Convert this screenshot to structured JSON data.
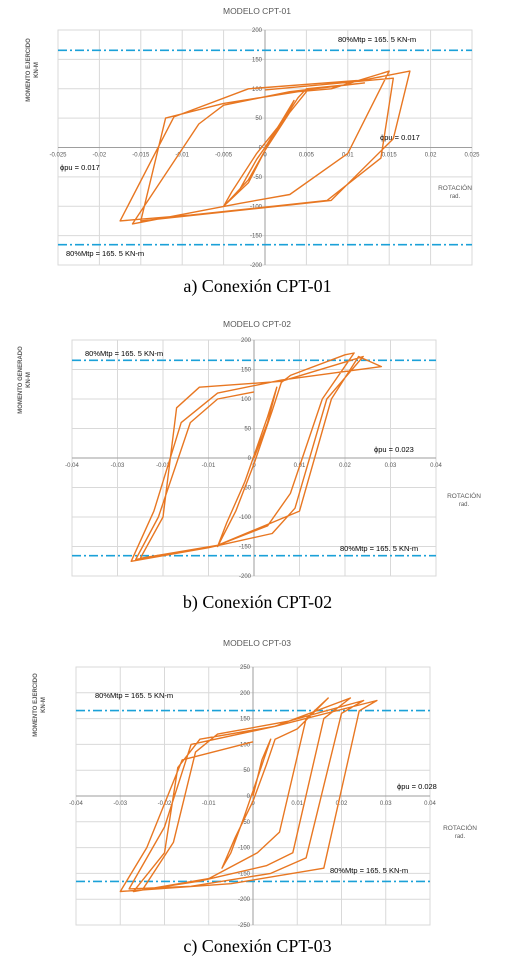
{
  "colors": {
    "curve": "#E87722",
    "ref_line": "#1BA1D8",
    "grid": "#D9D9D9",
    "axis": "#9E9E9E",
    "text": "#595959"
  },
  "figures": [
    {
      "title": "MODELO CPT-01",
      "caption": "a) Conexión CPT-01",
      "ylabel_top": "MOMENTO EJERCIDO",
      "ylabel_bottom": "KN-M",
      "xlabel_top": "ROTACIÓN",
      "xlabel_bottom": "rad.",
      "ref_label_top": "80%Mtp = 165. 5 KN-m",
      "ref_label_bottom": "80%Mtp = 165. 5 KN-m",
      "phi_labels": [
        "ϕpu = 0.017",
        "ϕpu = 0.017"
      ]
    },
    {
      "title": "MODELO CPT-02",
      "caption": "b) Conexión CPT-02",
      "ylabel_top": "MOMENTO GENERADO",
      "ylabel_bottom": "KN-M",
      "xlabel_top": "ROTACIÓN",
      "xlabel_bottom": "rad.",
      "ref_label_top": "80%Mtp = 165. 5 KN-m",
      "ref_label_bottom": "80%Mtp = 165. 5 KN-m",
      "phi_labels": [
        "ϕpu = 0.023"
      ]
    },
    {
      "title": "MODELO CPT-03",
      "caption": "c) Conexión CPT-03",
      "ylabel_top": "MOMENTO EJERCIDO",
      "ylabel_bottom": "KN-M",
      "xlabel_top": "ROTACIÓN",
      "xlabel_bottom": "rad.",
      "ref_label_top": "80%Mtp = 165. 5 KN-m",
      "ref_label_bottom": "80%Mtp = 165. 5 KN-m",
      "phi_labels": [
        "ϕpu = 0.028"
      ]
    }
  ],
  "chart_data": [
    {
      "type": "line",
      "title": "MODELO CPT-01",
      "xlabel": "ROTACIÓN rad.",
      "ylabel": "MOMENTO EJERCIDO KN-M",
      "xlim": [
        -0.025,
        0.025
      ],
      "ylim": [
        -200,
        200
      ],
      "xticks": [
        -0.025,
        -0.02,
        -0.015,
        -0.01,
        -0.005,
        0,
        0.005,
        0.01,
        0.015,
        0.02,
        0.025
      ],
      "xtick_labels": [
        "-0.025",
        "-0.02",
        "-0.015",
        "-0.01",
        "-0.005",
        "0",
        "0.005",
        "0.01",
        "0.015",
        "0.02",
        "0.025"
      ],
      "yticks": [
        -200,
        -150,
        -100,
        -50,
        0,
        50,
        100,
        150,
        200
      ],
      "ytick_labels": [
        "-200",
        "-150",
        "-100",
        "-50",
        "0",
        "50",
        "100",
        "150",
        "200"
      ],
      "reference_lines_y": [
        165.5,
        -165.5
      ],
      "series": [
        {
          "values_xy": [
            [
              0,
              0
            ],
            [
              0.002,
              45
            ],
            [
              0.0035,
              80
            ],
            [
              0.002,
              40
            ],
            [
              -0.001,
              -20
            ],
            [
              -0.003,
              -70
            ],
            [
              -0.005,
              -100
            ],
            [
              -0.002,
              -60
            ],
            [
              0,
              -5
            ],
            [
              0.003,
              60
            ],
            [
              0.005,
              95
            ],
            [
              0.003,
              60
            ],
            [
              -0.001,
              -10
            ],
            [
              -0.004,
              -75
            ],
            [
              -0.005,
              -100
            ],
            [
              -0.002,
              -55
            ],
            [
              0.001,
              20
            ],
            [
              0.004,
              85
            ],
            [
              0.005,
              100
            ],
            [
              0.012,
              110
            ],
            [
              0.003,
              95
            ],
            [
              -0.005,
              72
            ],
            [
              -0.008,
              40
            ],
            [
              -0.016,
              -130
            ],
            [
              -0.003,
              -95
            ],
            [
              0.003,
              -80
            ],
            [
              0.01,
              -10
            ],
            [
              0.015,
              130
            ],
            [
              0.008,
              100
            ],
            [
              0.004,
              95
            ],
            [
              -0.005,
              75
            ],
            [
              -0.012,
              50
            ],
            [
              -0.015,
              -125
            ],
            [
              0.0015,
              -100
            ],
            [
              0.008,
              -90
            ],
            [
              0.0155,
              15
            ],
            [
              0.0175,
              130
            ],
            [
              0.012,
              115
            ],
            [
              -0.002,
              100
            ],
            [
              -0.011,
              52
            ],
            [
              -0.0175,
              -125
            ],
            [
              -0.009,
              -115
            ],
            [
              0.0075,
              -90
            ],
            [
              0.014,
              -18
            ],
            [
              0.0155,
              118
            ],
            [
              0.0,
              98
            ]
          ]
        }
      ]
    },
    {
      "type": "line",
      "title": "MODELO CPT-02",
      "xlabel": "ROTACIÓN rad.",
      "ylabel": "MOMENTO GENERADO KN-M",
      "xlim": [
        -0.04,
        0.04
      ],
      "ylim": [
        -200,
        200
      ],
      "xticks": [
        -0.04,
        -0.03,
        -0.02,
        -0.01,
        0,
        0.01,
        0.02,
        0.03,
        0.04
      ],
      "xtick_labels": [
        "-0.04",
        "-0.03",
        "-0.02",
        "-0.01",
        "0",
        "0.01",
        "0.02",
        "0.03",
        "0.04"
      ],
      "yticks": [
        -200,
        -150,
        -100,
        -50,
        0,
        50,
        100,
        150,
        200
      ],
      "ytick_labels": [
        "-200",
        "-150",
        "-100",
        "-50",
        "0",
        "50",
        "100",
        "150",
        "200"
      ],
      "reference_lines_y": [
        165.5,
        -165.5
      ],
      "series": [
        {
          "values_xy": [
            [
              0,
              0
            ],
            [
              0.003,
              60
            ],
            [
              0.005,
              120
            ],
            [
              0.003,
              70
            ],
            [
              -0.002,
              -40
            ],
            [
              -0.006,
              -110
            ],
            [
              -0.008,
              -150
            ],
            [
              -0.004,
              -90
            ],
            [
              0,
              -10
            ],
            [
              0.004,
              80
            ],
            [
              0.006,
              128
            ],
            [
              0.008,
              140
            ],
            [
              0.02,
              175
            ],
            [
              0.022,
              178
            ],
            [
              0.015,
              100
            ],
            [
              0.008,
              -60
            ],
            [
              0.003,
              -115
            ],
            [
              -0.008,
              -148
            ],
            [
              -0.025,
              -170
            ],
            [
              -0.02,
              -100
            ],
            [
              -0.017,
              85
            ],
            [
              -0.012,
              120
            ],
            [
              0.006,
              130
            ],
            [
              0.021,
              165
            ],
            [
              0.024,
              172
            ],
            [
              0.016,
              100
            ],
            [
              0.009,
              -85
            ],
            [
              0.004,
              -128
            ],
            [
              -0.01,
              -152
            ],
            [
              -0.027,
              -175
            ],
            [
              -0.022,
              -90
            ],
            [
              -0.016,
              60
            ],
            [
              -0.008,
              110
            ],
            [
              0.006,
              132
            ],
            [
              0.028,
              155
            ],
            [
              0.023,
              172
            ],
            [
              0.017,
              100
            ],
            [
              0.01,
              -90
            ],
            [
              -0.008,
              -148
            ],
            [
              -0.026,
              -172
            ],
            [
              -0.021,
              -100
            ],
            [
              -0.014,
              60
            ],
            [
              -0.008,
              100
            ],
            [
              0.0,
              112
            ]
          ]
        }
      ]
    },
    {
      "type": "line",
      "title": "MODELO CPT-03",
      "xlabel": "ROTACIÓN rad.",
      "ylabel": "MOMENTO EJERCIDO KN-M",
      "xlim": [
        -0.04,
        0.04
      ],
      "ylim": [
        -250,
        250
      ],
      "xticks": [
        -0.04,
        -0.03,
        -0.02,
        -0.01,
        0,
        0.01,
        0.02,
        0.03,
        0.04
      ],
      "xtick_labels": [
        "-0.04",
        "-0.03",
        "-0.02",
        "-0.01",
        "0",
        "0.01",
        "0.02",
        "0.03",
        "0.04"
      ],
      "yticks": [
        -250,
        -200,
        -150,
        -100,
        -50,
        0,
        50,
        100,
        150,
        200,
        250
      ],
      "ytick_labels": [
        "-250",
        "-200",
        "-150",
        "-100",
        "-50",
        "0",
        "50",
        "100",
        "150",
        "200",
        "250"
      ],
      "reference_lines_y": [
        165.5,
        -165.5
      ],
      "series": [
        {
          "values_xy": [
            [
              0,
              0
            ],
            [
              0.002,
              70
            ],
            [
              0.004,
              110
            ],
            [
              0.002,
              60
            ],
            [
              -0.002,
              -40
            ],
            [
              -0.005,
              -110
            ],
            [
              -0.007,
              -140
            ],
            [
              -0.004,
              -80
            ],
            [
              0,
              -10
            ],
            [
              0.003,
              60
            ],
            [
              0.005,
              110
            ],
            [
              0.01,
              130
            ],
            [
              0.017,
              190
            ],
            [
              0.012,
              150
            ],
            [
              0.006,
              -70
            ],
            [
              0.001,
              -110
            ],
            [
              -0.01,
              -160
            ],
            [
              -0.027,
              -185
            ],
            [
              -0.02,
              -110
            ],
            [
              -0.017,
              55
            ],
            [
              -0.012,
              110
            ],
            [
              0.005,
              135
            ],
            [
              0.022,
              190
            ],
            [
              0.016,
              150
            ],
            [
              0.009,
              -110
            ],
            [
              0.003,
              -135
            ],
            [
              -0.012,
              -165
            ],
            [
              -0.025,
              -182
            ],
            [
              -0.018,
              -90
            ],
            [
              -0.013,
              85
            ],
            [
              -0.008,
              120
            ],
            [
              0.008,
              145
            ],
            [
              0.025,
              185
            ],
            [
              0.02,
              160
            ],
            [
              0.012,
              -120
            ],
            [
              0.004,
              -150
            ],
            [
              -0.014,
              -175
            ],
            [
              -0.028,
              -180
            ],
            [
              -0.02,
              -60
            ],
            [
              -0.014,
              100
            ],
            [
              0.005,
              135
            ],
            [
              0.028,
              185
            ],
            [
              0.024,
              165
            ],
            [
              0.016,
              -140
            ],
            [
              -0.005,
              -170
            ],
            [
              -0.03,
              -185
            ],
            [
              -0.024,
              -100
            ],
            [
              -0.016,
              70
            ],
            [
              0.0,
              105
            ]
          ]
        }
      ]
    }
  ]
}
